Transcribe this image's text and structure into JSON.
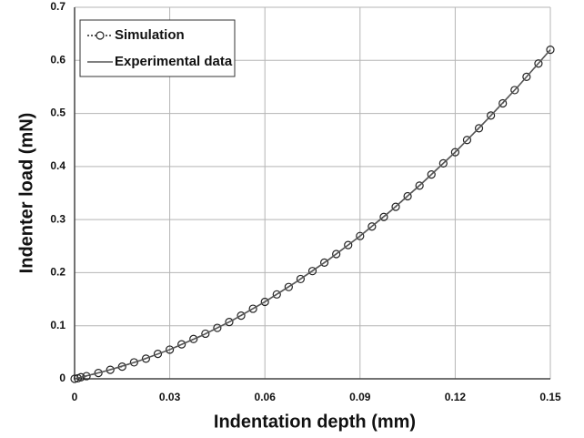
{
  "chart_data": {
    "type": "line",
    "xlabel": "Indentation depth (mm)",
    "ylabel": "Indenter load (mN)",
    "xlim": [
      0,
      0.15
    ],
    "xticks": [
      0,
      0.03,
      0.06,
      0.09,
      0.12,
      0.15
    ],
    "ylim": [
      0,
      0.7
    ],
    "yticks": [
      0,
      0.1,
      0.2,
      0.3,
      0.4,
      0.5,
      0.6,
      0.7
    ],
    "grid": true,
    "legend": "upper left",
    "series": [
      {
        "name": "Simulation",
        "color": "#222222",
        "marker": "circle",
        "linestyle": "dotted",
        "x": [
          0,
          0.001,
          0.002,
          0.00375,
          0.0075,
          0.01125,
          0.015,
          0.01875,
          0.0225,
          0.02625,
          0.03,
          0.03375,
          0.0375,
          0.04125,
          0.045,
          0.04875,
          0.0525,
          0.05625,
          0.06,
          0.06375,
          0.0675,
          0.07125,
          0.075,
          0.07875,
          0.0825,
          0.08625,
          0.09,
          0.09375,
          0.0975,
          0.10125,
          0.105,
          0.10875,
          0.1125,
          0.11625,
          0.12,
          0.12375,
          0.1275,
          0.13125,
          0.135,
          0.13875,
          0.1425,
          0.14625,
          0.15
        ],
        "values": [
          0,
          0.001,
          0.003,
          0.005,
          0.011,
          0.017,
          0.023,
          0.031,
          0.038,
          0.047,
          0.055,
          0.065,
          0.075,
          0.085,
          0.096,
          0.107,
          0.119,
          0.132,
          0.145,
          0.159,
          0.173,
          0.188,
          0.203,
          0.219,
          0.235,
          0.252,
          0.269,
          0.287,
          0.305,
          0.324,
          0.344,
          0.364,
          0.385,
          0.406,
          0.427,
          0.45,
          0.472,
          0.496,
          0.519,
          0.544,
          0.569,
          0.594,
          0.62
        ]
      },
      {
        "name": "Experimental data",
        "color": "#555555",
        "linestyle": "solid",
        "x": [
          0,
          0.01,
          0.02,
          0.03,
          0.04,
          0.05,
          0.06,
          0.07,
          0.08,
          0.09,
          0.1,
          0.11,
          0.12,
          0.13,
          0.14,
          0.15
        ],
        "values": [
          0,
          0.015,
          0.033,
          0.055,
          0.081,
          0.111,
          0.145,
          0.183,
          0.224,
          0.269,
          0.318,
          0.371,
          0.427,
          0.488,
          0.552,
          0.62
        ]
      }
    ]
  }
}
